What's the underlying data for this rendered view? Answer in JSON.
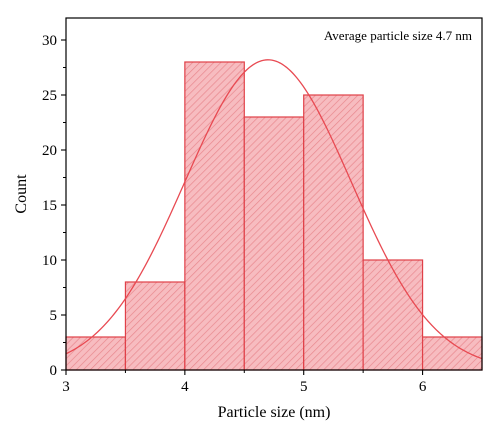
{
  "chart_data": {
    "type": "bar",
    "subtype": "histogram",
    "bins": [
      {
        "start": 3.0,
        "end": 3.5,
        "count": 3
      },
      {
        "start": 3.5,
        "end": 4.0,
        "count": 8
      },
      {
        "start": 4.0,
        "end": 4.5,
        "count": 28
      },
      {
        "start": 4.5,
        "end": 5.0,
        "count": 23
      },
      {
        "start": 5.0,
        "end": 5.5,
        "count": 25
      },
      {
        "start": 5.5,
        "end": 6.0,
        "count": 10
      },
      {
        "start": 6.0,
        "end": 6.5,
        "count": 3
      }
    ],
    "fit_curve": {
      "type": "gaussian",
      "mean": 4.7,
      "sigma": 0.7,
      "peak": 28.2
    },
    "annotation": "Average particle size 4.7 nm",
    "xlabel": "Particle size (nm)",
    "ylabel": "Count",
    "xlim": [
      3,
      6.5
    ],
    "ylim": [
      0,
      32
    ],
    "xticks": [
      3,
      4,
      5,
      6
    ],
    "yticks": [
      0,
      5,
      10,
      15,
      20,
      25,
      30
    ],
    "grid": false,
    "legend": "none",
    "colors": {
      "bar_fill": "#f7bcc0",
      "bar_hatch": "#e8888e",
      "bar_edge": "#e04048",
      "curve": "#e84a52",
      "axis": "#000000"
    }
  }
}
